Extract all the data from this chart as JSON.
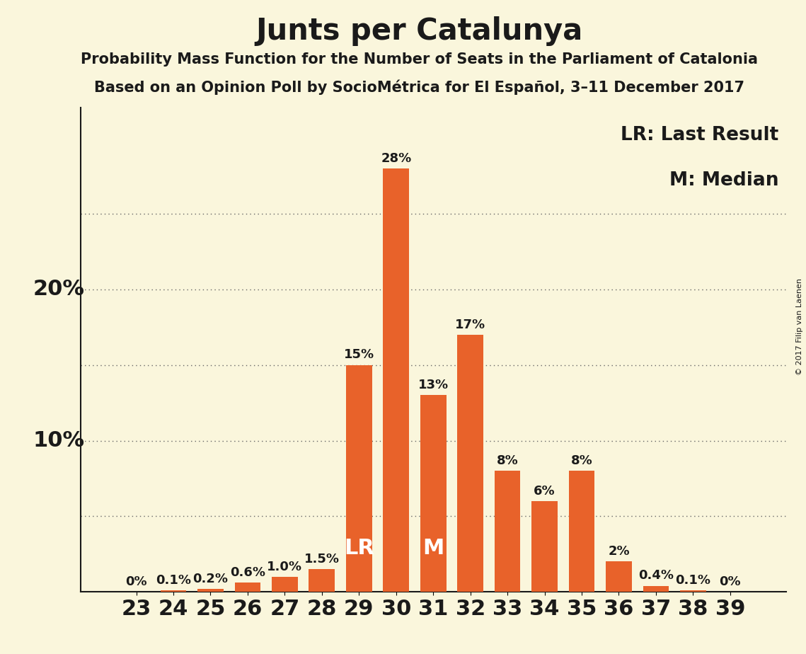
{
  "title": "Junts per Catalunya",
  "subtitle1": "Probability Mass Function for the Number of Seats in the Parliament of Catalonia",
  "subtitle2": "Based on an Opinion Poll by SocioMétrica for El Español, 3–11 December 2017",
  "copyright": "© 2017 Filip van Laenen",
  "legend_lr": "LR: Last Result",
  "legend_m": "M: Median",
  "seats": [
    23,
    24,
    25,
    26,
    27,
    28,
    29,
    30,
    31,
    32,
    33,
    34,
    35,
    36,
    37,
    38,
    39
  ],
  "probabilities": [
    0.0,
    0.1,
    0.2,
    0.6,
    1.0,
    1.5,
    15.0,
    28.0,
    13.0,
    17.0,
    8.0,
    6.0,
    8.0,
    2.0,
    0.4,
    0.1,
    0.0
  ],
  "labels": [
    "0%",
    "0.1%",
    "0.2%",
    "0.6%",
    "1.0%",
    "1.5%",
    "15%",
    "28%",
    "13%",
    "17%",
    "8%",
    "6%",
    "8%",
    "2%",
    "0.4%",
    "0.1%",
    "0%"
  ],
  "bar_color": "#E8622A",
  "background_color": "#FAF6DC",
  "lr_seat": 29,
  "median_seat": 31,
  "lr_label": "LR",
  "median_label": "M",
  "title_fontsize": 30,
  "subtitle_fontsize": 15,
  "bar_label_fontsize": 13,
  "inbar_label_fontsize": 22,
  "axis_tick_fontsize": 22,
  "ylabel_fontsize": 22,
  "legend_fontsize": 19,
  "copyright_fontsize": 8,
  "ylim": 32,
  "ylabel_vals": [
    10,
    20
  ],
  "ylabel_labels": [
    "10%",
    "20%"
  ],
  "grid_vals": [
    5,
    10,
    15,
    20,
    25
  ]
}
